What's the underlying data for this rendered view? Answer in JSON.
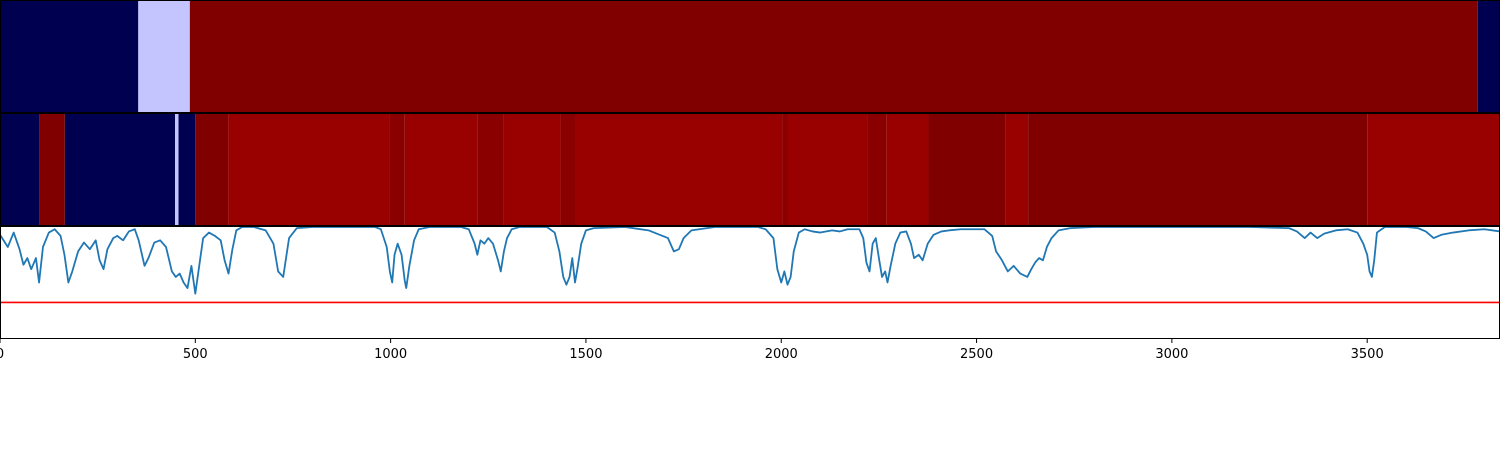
{
  "chart_data": {
    "type": "heatmap",
    "xlim": [
      0,
      3840
    ],
    "x_ticks": [
      {
        "value": 0,
        "label": "0"
      },
      {
        "value": 500,
        "label": "500"
      },
      {
        "value": 1000,
        "label": "1000"
      },
      {
        "value": 1500,
        "label": "1500"
      },
      {
        "value": 2000,
        "label": "2000"
      },
      {
        "value": 2500,
        "label": "2500"
      },
      {
        "value": 3000,
        "label": "3000"
      },
      {
        "value": 3500,
        "label": "3500"
      }
    ],
    "colors": {
      "navy": "#000050",
      "lavender": "#c4c4ff",
      "darkred": "#800000",
      "darkred2": "#8a0000",
      "red": "#990000",
      "line": "#1f77b4",
      "threshold": "#ff0000"
    },
    "rows": [
      {
        "segments": [
          {
            "start": 0,
            "end": 354,
            "color": "navy"
          },
          {
            "start": 354,
            "end": 486,
            "color": "lavender"
          },
          {
            "start": 486,
            "end": 3783,
            "color": "darkred"
          },
          {
            "start": 3783,
            "end": 3840,
            "color": "navy"
          }
        ]
      },
      {
        "segments": [
          {
            "start": 0,
            "end": 100,
            "color": "navy"
          },
          {
            "start": 100,
            "end": 166,
            "color": "darkred"
          },
          {
            "start": 166,
            "end": 448,
            "color": "navy"
          },
          {
            "start": 448,
            "end": 457,
            "color": "lavender"
          },
          {
            "start": 457,
            "end": 500,
            "color": "navy"
          },
          {
            "start": 500,
            "end": 584,
            "color": "darkred"
          },
          {
            "start": 584,
            "end": 996,
            "color": "red"
          },
          {
            "start": 996,
            "end": 1036,
            "color": "darkred2"
          },
          {
            "start": 1036,
            "end": 1222,
            "color": "red"
          },
          {
            "start": 1222,
            "end": 1290,
            "color": "darkred2"
          },
          {
            "start": 1290,
            "end": 1436,
            "color": "red"
          },
          {
            "start": 1436,
            "end": 1472,
            "color": "darkred2"
          },
          {
            "start": 1472,
            "end": 2003,
            "color": "red"
          },
          {
            "start": 2003,
            "end": 2016,
            "color": "darkred2"
          },
          {
            "start": 2016,
            "end": 2222,
            "color": "red"
          },
          {
            "start": 2222,
            "end": 2270,
            "color": "darkred2"
          },
          {
            "start": 2270,
            "end": 2377,
            "color": "red"
          },
          {
            "start": 2377,
            "end": 2575,
            "color": "darkred"
          },
          {
            "start": 2575,
            "end": 2632,
            "color": "red"
          },
          {
            "start": 2632,
            "end": 3500,
            "color": "darkred"
          },
          {
            "start": 3500,
            "end": 3840,
            "color": "red"
          }
        ]
      }
    ],
    "line_ylim": [
      0,
      1
    ],
    "threshold": 0.32,
    "line_points": [
      [
        0,
        0.93
      ],
      [
        20,
        0.82
      ],
      [
        35,
        0.95
      ],
      [
        50,
        0.8
      ],
      [
        60,
        0.66
      ],
      [
        70,
        0.72
      ],
      [
        80,
        0.62
      ],
      [
        92,
        0.72
      ],
      [
        100,
        0.5
      ],
      [
        110,
        0.82
      ],
      [
        125,
        0.95
      ],
      [
        140,
        0.98
      ],
      [
        155,
        0.92
      ],
      [
        165,
        0.75
      ],
      [
        175,
        0.5
      ],
      [
        185,
        0.6
      ],
      [
        200,
        0.78
      ],
      [
        215,
        0.86
      ],
      [
        230,
        0.8
      ],
      [
        245,
        0.88
      ],
      [
        255,
        0.7
      ],
      [
        265,
        0.62
      ],
      [
        275,
        0.8
      ],
      [
        290,
        0.9
      ],
      [
        300,
        0.92
      ],
      [
        315,
        0.88
      ],
      [
        330,
        0.96
      ],
      [
        345,
        0.98
      ],
      [
        355,
        0.88
      ],
      [
        370,
        0.65
      ],
      [
        380,
        0.72
      ],
      [
        395,
        0.86
      ],
      [
        410,
        0.88
      ],
      [
        425,
        0.82
      ],
      [
        440,
        0.6
      ],
      [
        450,
        0.55
      ],
      [
        460,
        0.58
      ],
      [
        470,
        0.5
      ],
      [
        480,
        0.45
      ],
      [
        490,
        0.65
      ],
      [
        500,
        0.4
      ],
      [
        510,
        0.65
      ],
      [
        520,
        0.9
      ],
      [
        535,
        0.95
      ],
      [
        550,
        0.92
      ],
      [
        565,
        0.88
      ],
      [
        575,
        0.7
      ],
      [
        585,
        0.58
      ],
      [
        595,
        0.8
      ],
      [
        605,
        0.97
      ],
      [
        620,
        1.0
      ],
      [
        650,
        1.0
      ],
      [
        680,
        0.97
      ],
      [
        700,
        0.85
      ],
      [
        712,
        0.6
      ],
      [
        725,
        0.55
      ],
      [
        740,
        0.9
      ],
      [
        760,
        0.99
      ],
      [
        800,
        1.0
      ],
      [
        960,
        1.0
      ],
      [
        975,
        0.98
      ],
      [
        990,
        0.82
      ],
      [
        998,
        0.6
      ],
      [
        1004,
        0.5
      ],
      [
        1010,
        0.75
      ],
      [
        1018,
        0.85
      ],
      [
        1028,
        0.75
      ],
      [
        1036,
        0.52
      ],
      [
        1040,
        0.45
      ],
      [
        1048,
        0.65
      ],
      [
        1060,
        0.88
      ],
      [
        1072,
        0.98
      ],
      [
        1100,
        1.0
      ],
      [
        1180,
        1.0
      ],
      [
        1200,
        0.98
      ],
      [
        1215,
        0.85
      ],
      [
        1222,
        0.75
      ],
      [
        1230,
        0.88
      ],
      [
        1240,
        0.85
      ],
      [
        1250,
        0.9
      ],
      [
        1262,
        0.85
      ],
      [
        1275,
        0.7
      ],
      [
        1282,
        0.6
      ],
      [
        1290,
        0.78
      ],
      [
        1298,
        0.9
      ],
      [
        1310,
        0.98
      ],
      [
        1330,
        1.0
      ],
      [
        1400,
        1.0
      ],
      [
        1420,
        0.95
      ],
      [
        1432,
        0.78
      ],
      [
        1442,
        0.55
      ],
      [
        1450,
        0.48
      ],
      [
        1458,
        0.55
      ],
      [
        1465,
        0.72
      ],
      [
        1472,
        0.5
      ],
      [
        1478,
        0.62
      ],
      [
        1488,
        0.85
      ],
      [
        1500,
        0.97
      ],
      [
        1520,
        0.99
      ],
      [
        1600,
        1.0
      ],
      [
        1660,
        0.97
      ],
      [
        1710,
        0.9
      ],
      [
        1725,
        0.78
      ],
      [
        1738,
        0.8
      ],
      [
        1750,
        0.9
      ],
      [
        1770,
        0.97
      ],
      [
        1830,
        1.0
      ],
      [
        1940,
        1.0
      ],
      [
        1960,
        0.98
      ],
      [
        1980,
        0.9
      ],
      [
        1990,
        0.62
      ],
      [
        2000,
        0.5
      ],
      [
        2008,
        0.6
      ],
      [
        2016,
        0.48
      ],
      [
        2024,
        0.55
      ],
      [
        2032,
        0.78
      ],
      [
        2045,
        0.95
      ],
      [
        2060,
        0.98
      ],
      [
        2080,
        0.96
      ],
      [
        2100,
        0.95
      ],
      [
        2130,
        0.97
      ],
      [
        2150,
        0.96
      ],
      [
        2170,
        0.98
      ],
      [
        2200,
        0.98
      ],
      [
        2210,
        0.9
      ],
      [
        2218,
        0.68
      ],
      [
        2226,
        0.6
      ],
      [
        2234,
        0.85
      ],
      [
        2242,
        0.9
      ],
      [
        2250,
        0.72
      ],
      [
        2258,
        0.55
      ],
      [
        2266,
        0.6
      ],
      [
        2272,
        0.5
      ],
      [
        2280,
        0.65
      ],
      [
        2292,
        0.85
      ],
      [
        2305,
        0.95
      ],
      [
        2320,
        0.96
      ],
      [
        2332,
        0.85
      ],
      [
        2340,
        0.72
      ],
      [
        2352,
        0.75
      ],
      [
        2362,
        0.7
      ],
      [
        2375,
        0.85
      ],
      [
        2390,
        0.93
      ],
      [
        2410,
        0.96
      ],
      [
        2430,
        0.97
      ],
      [
        2460,
        0.98
      ],
      [
        2520,
        0.98
      ],
      [
        2540,
        0.92
      ],
      [
        2550,
        0.78
      ],
      [
        2565,
        0.7
      ],
      [
        2580,
        0.6
      ],
      [
        2595,
        0.65
      ],
      [
        2612,
        0.58
      ],
      [
        2630,
        0.55
      ],
      [
        2640,
        0.62
      ],
      [
        2650,
        0.68
      ],
      [
        2660,
        0.72
      ],
      [
        2670,
        0.7
      ],
      [
        2680,
        0.82
      ],
      [
        2692,
        0.9
      ],
      [
        2710,
        0.97
      ],
      [
        2740,
        0.99
      ],
      [
        2800,
        1.0
      ],
      [
        3200,
        1.0
      ],
      [
        3300,
        0.99
      ],
      [
        3320,
        0.96
      ],
      [
        3340,
        0.9
      ],
      [
        3355,
        0.95
      ],
      [
        3372,
        0.9
      ],
      [
        3390,
        0.94
      ],
      [
        3420,
        0.97
      ],
      [
        3450,
        0.98
      ],
      [
        3475,
        0.95
      ],
      [
        3490,
        0.85
      ],
      [
        3500,
        0.75
      ],
      [
        3506,
        0.6
      ],
      [
        3512,
        0.55
      ],
      [
        3518,
        0.7
      ],
      [
        3525,
        0.95
      ],
      [
        3545,
        1.0
      ],
      [
        3600,
        1.0
      ],
      [
        3630,
        0.99
      ],
      [
        3650,
        0.96
      ],
      [
        3670,
        0.9
      ],
      [
        3690,
        0.93
      ],
      [
        3720,
        0.95
      ],
      [
        3760,
        0.97
      ],
      [
        3800,
        0.98
      ],
      [
        3840,
        0.96
      ]
    ]
  }
}
